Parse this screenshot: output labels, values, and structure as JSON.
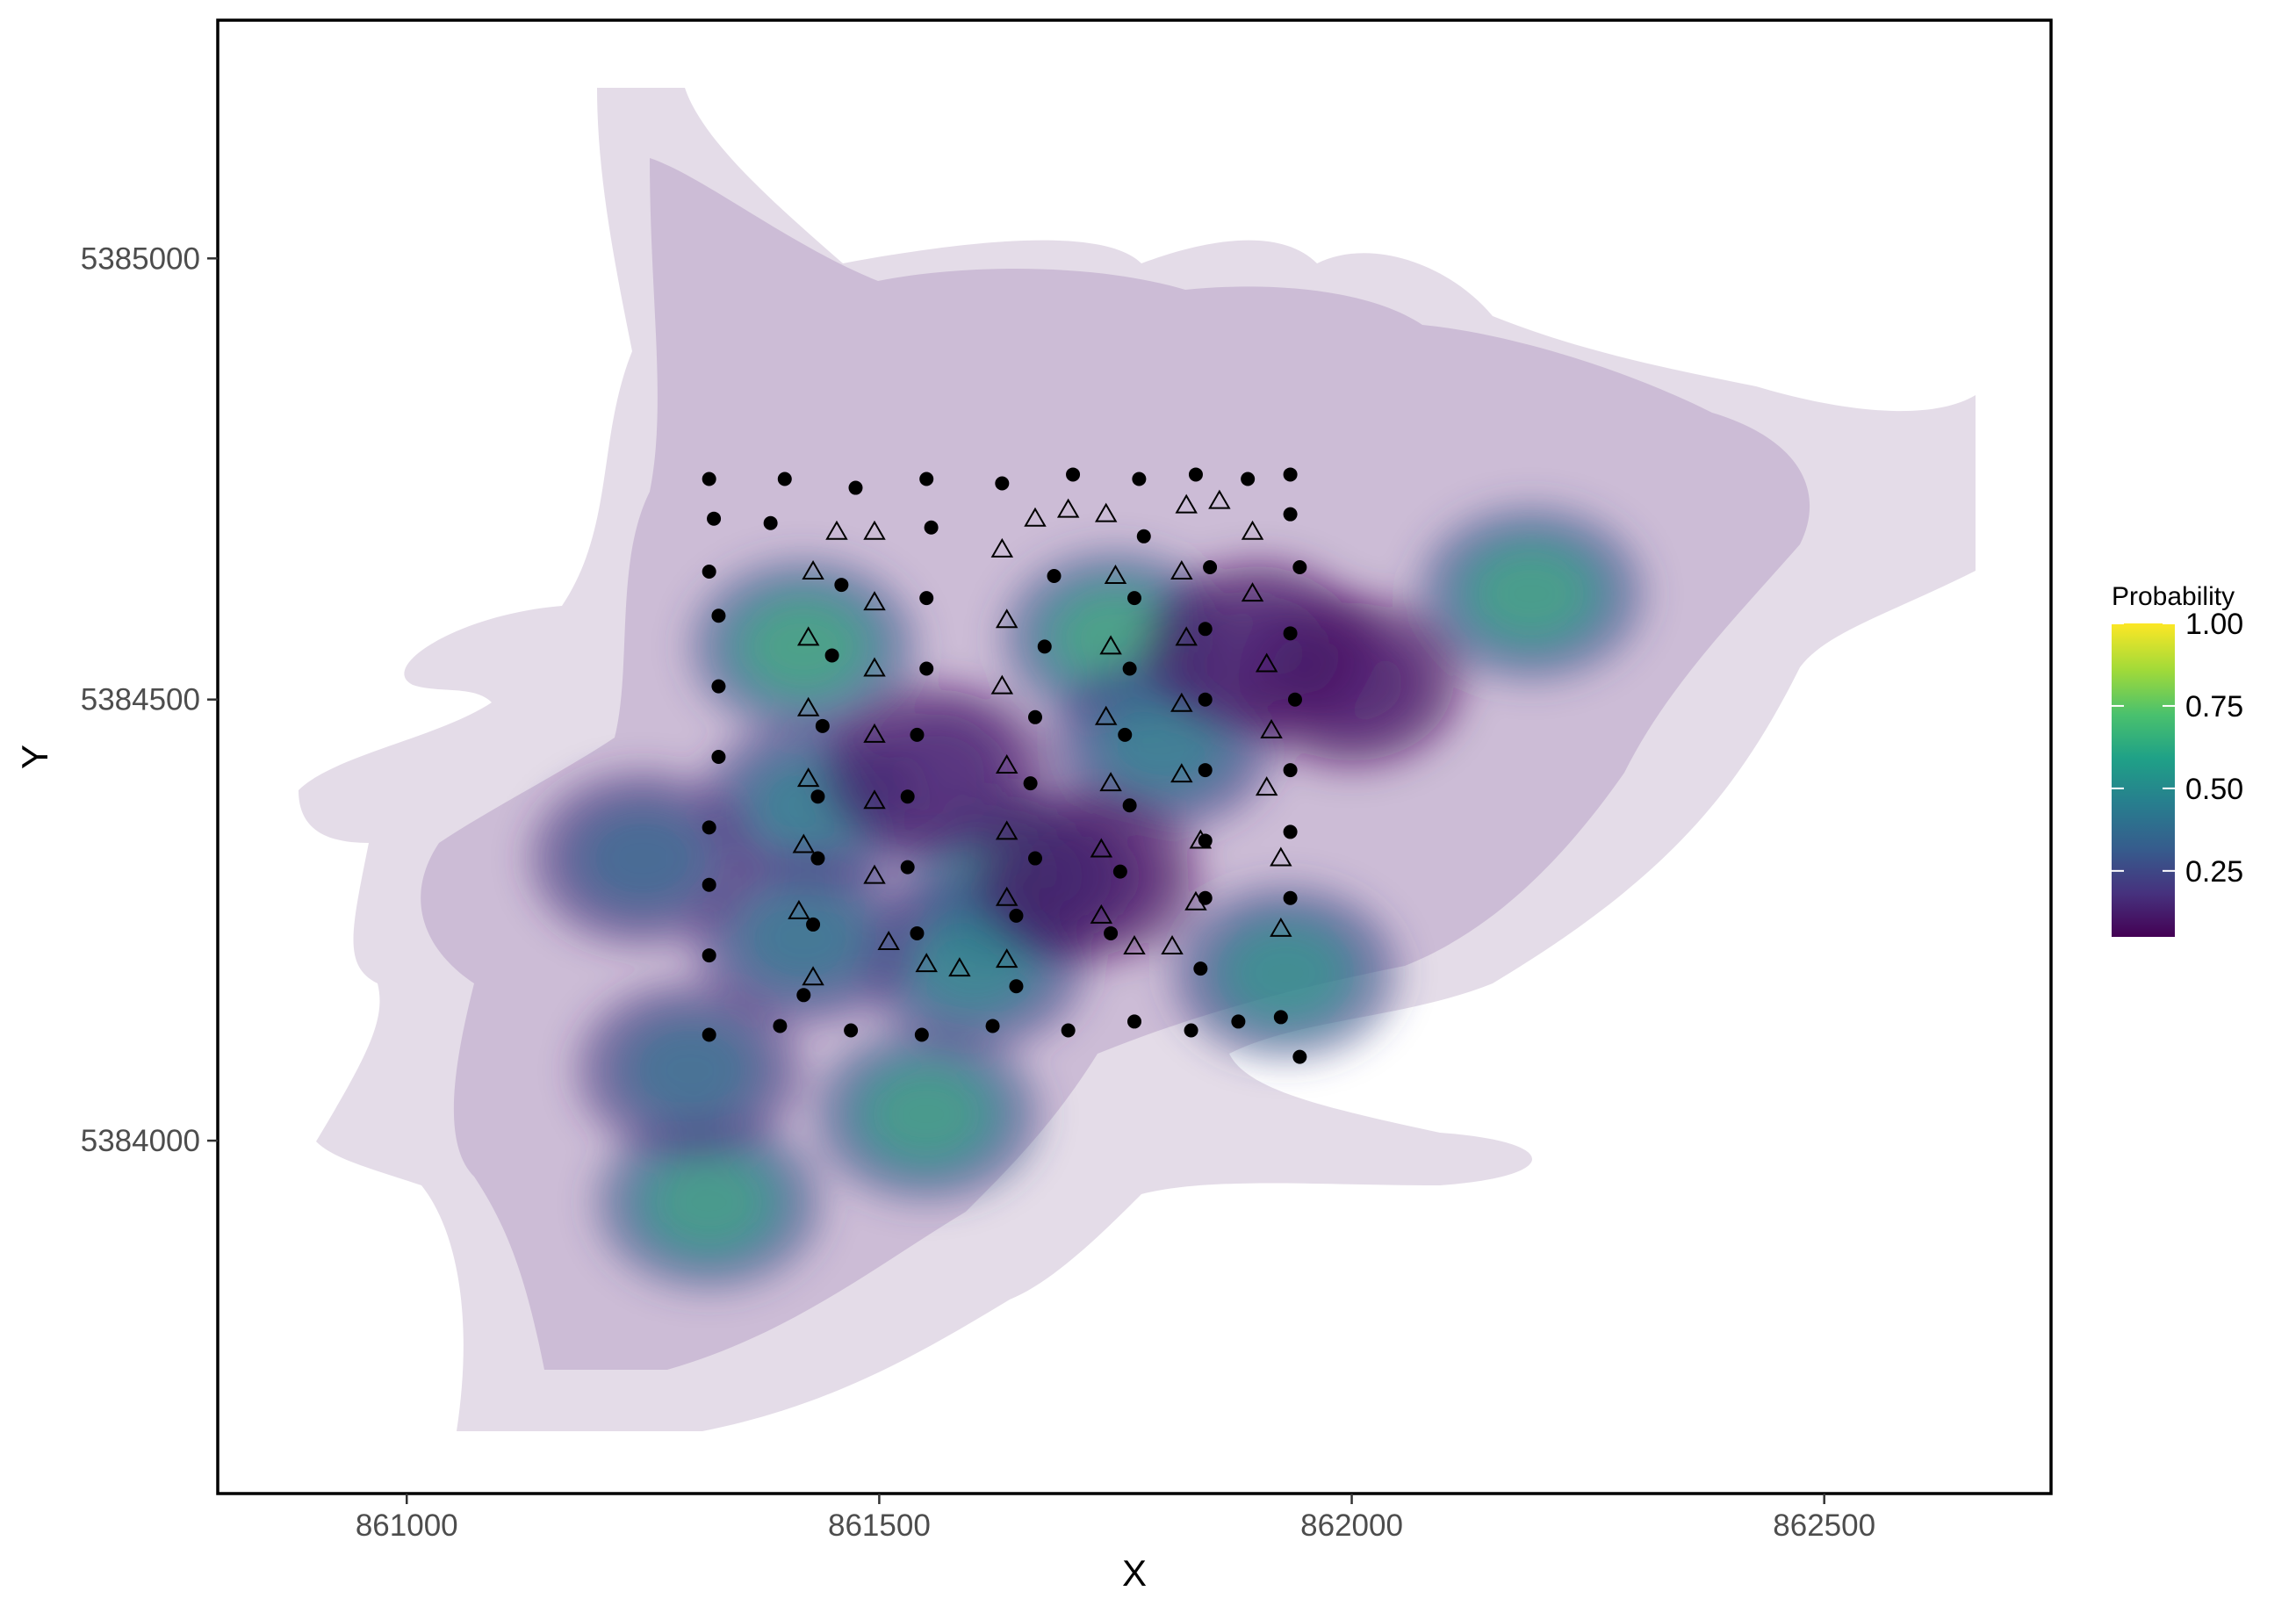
{
  "chart_data": {
    "type": "scatter",
    "subtype": "kernel density contour overlay",
    "xlabel": "X",
    "ylabel": "Y",
    "xlim": [
      860800,
      862740
    ],
    "ylim": [
      5383600,
      5385270
    ],
    "x_ticks": [
      861000,
      861500,
      862000,
      862500
    ],
    "y_ticks": [
      5384000,
      5384500,
      5385000
    ],
    "x_tick_labels": [
      "861000",
      "861500",
      "862000",
      "862500"
    ],
    "y_tick_labels": [
      "5384000",
      "5384500",
      "5385000"
    ],
    "grid": false,
    "legend": {
      "title": "Probability",
      "placement": "right",
      "colorscale": "viridis",
      "range": [
        0.05,
        1.0
      ],
      "ticks": [
        0.25,
        0.5,
        0.75,
        1.0
      ],
      "tick_labels": [
        "0.25",
        "0.50",
        "0.75",
        "1.00"
      ]
    },
    "density_hotspots": [
      {
        "x": 861420,
        "y": 5384560,
        "level": 0.85
      },
      {
        "x": 861750,
        "y": 5384570,
        "level": 0.85
      },
      {
        "x": 862190,
        "y": 5384620,
        "level": 0.82
      },
      {
        "x": 861550,
        "y": 5384030,
        "level": 0.8
      },
      {
        "x": 861320,
        "y": 5383930,
        "level": 0.8
      },
      {
        "x": 861430,
        "y": 5384380,
        "level": 0.6
      },
      {
        "x": 861640,
        "y": 5384300,
        "level": 0.7
      },
      {
        "x": 861600,
        "y": 5384200,
        "level": 0.65
      },
      {
        "x": 861800,
        "y": 5384450,
        "level": 0.6
      },
      {
        "x": 861930,
        "y": 5384190,
        "level": 0.7
      },
      {
        "x": 861420,
        "y": 5384230,
        "level": 0.55
      },
      {
        "x": 861250,
        "y": 5384320,
        "level": 0.45
      },
      {
        "x": 861300,
        "y": 5384080,
        "level": 0.5
      },
      {
        "x": 862000,
        "y": 5384520,
        "level": 0.1
      },
      {
        "x": 861720,
        "y": 5384300,
        "level": 0.1
      },
      {
        "x": 861900,
        "y": 5384560,
        "level": 0.12
      },
      {
        "x": 861560,
        "y": 5384420,
        "level": 0.15
      }
    ],
    "series": [
      {
        "marker": "circle",
        "points": [
          [
            861320,
            5384750
          ],
          [
            861400,
            5384750
          ],
          [
            861475,
            5384740
          ],
          [
            861550,
            5384750
          ],
          [
            861630,
            5384745
          ],
          [
            861705,
            5384755
          ],
          [
            861775,
            5384750
          ],
          [
            861835,
            5384755
          ],
          [
            861890,
            5384750
          ],
          [
            861935,
            5384755
          ],
          [
            861325,
            5384705
          ],
          [
            861385,
            5384700
          ],
          [
            861555,
            5384695
          ],
          [
            861780,
            5384685
          ],
          [
            861935,
            5384710
          ],
          [
            861320,
            5384645
          ],
          [
            861460,
            5384630
          ],
          [
            861685,
            5384640
          ],
          [
            861850,
            5384650
          ],
          [
            861945,
            5384650
          ],
          [
            861330,
            5384595
          ],
          [
            861550,
            5384615
          ],
          [
            861770,
            5384615
          ],
          [
            861935,
            5384575
          ],
          [
            861450,
            5384550
          ],
          [
            861550,
            5384535
          ],
          [
            861675,
            5384560
          ],
          [
            861765,
            5384535
          ],
          [
            861845,
            5384580
          ],
          [
            861330,
            5384515
          ],
          [
            861940,
            5384500
          ],
          [
            861845,
            5384500
          ],
          [
            861440,
            5384470
          ],
          [
            861540,
            5384460
          ],
          [
            861665,
            5384480
          ],
          [
            861760,
            5384460
          ],
          [
            861330,
            5384435
          ],
          [
            861435,
            5384390
          ],
          [
            861530,
            5384390
          ],
          [
            861660,
            5384405
          ],
          [
            861765,
            5384380
          ],
          [
            861845,
            5384420
          ],
          [
            861935,
            5384420
          ],
          [
            861320,
            5384355
          ],
          [
            861935,
            5384350
          ],
          [
            861845,
            5384340
          ],
          [
            861435,
            5384320
          ],
          [
            861530,
            5384310
          ],
          [
            861665,
            5384320
          ],
          [
            861755,
            5384305
          ],
          [
            861320,
            5384290
          ],
          [
            861845,
            5384275
          ],
          [
            861935,
            5384275
          ],
          [
            861430,
            5384245
          ],
          [
            861540,
            5384235
          ],
          [
            861645,
            5384255
          ],
          [
            861745,
            5384235
          ],
          [
            861320,
            5384210
          ],
          [
            861840,
            5384195
          ],
          [
            861420,
            5384165
          ],
          [
            861645,
            5384175
          ],
          [
            861925,
            5384140
          ],
          [
            861320,
            5384120
          ],
          [
            861395,
            5384130
          ],
          [
            861470,
            5384125
          ],
          [
            861545,
            5384120
          ],
          [
            861620,
            5384130
          ],
          [
            861700,
            5384125
          ],
          [
            861770,
            5384135
          ],
          [
            861830,
            5384125
          ],
          [
            861880,
            5384135
          ],
          [
            861945,
            5384095
          ]
        ]
      },
      {
        "marker": "triangle",
        "points": [
          [
            861455,
            5384690
          ],
          [
            861495,
            5384690
          ],
          [
            861665,
            5384705
          ],
          [
            861700,
            5384715
          ],
          [
            861740,
            5384710
          ],
          [
            861825,
            5384720
          ],
          [
            861860,
            5384725
          ],
          [
            861895,
            5384690
          ],
          [
            861430,
            5384645
          ],
          [
            861630,
            5384670
          ],
          [
            861750,
            5384640
          ],
          [
            861820,
            5384645
          ],
          [
            861895,
            5384620
          ],
          [
            861495,
            5384610
          ],
          [
            861635,
            5384590
          ],
          [
            861425,
            5384570
          ],
          [
            861745,
            5384560
          ],
          [
            861825,
            5384570
          ],
          [
            861495,
            5384535
          ],
          [
            861910,
            5384540
          ],
          [
            861630,
            5384515
          ],
          [
            861820,
            5384495
          ],
          [
            861425,
            5384490
          ],
          [
            861740,
            5384480
          ],
          [
            861495,
            5384460
          ],
          [
            861915,
            5384465
          ],
          [
            861635,
            5384425
          ],
          [
            861425,
            5384410
          ],
          [
            861745,
            5384405
          ],
          [
            861820,
            5384415
          ],
          [
            861910,
            5384400
          ],
          [
            861495,
            5384385
          ],
          [
            861635,
            5384350
          ],
          [
            861420,
            5384335
          ],
          [
            861840,
            5384340
          ],
          [
            861735,
            5384330
          ],
          [
            861925,
            5384320
          ],
          [
            861495,
            5384300
          ],
          [
            861635,
            5384275
          ],
          [
            861835,
            5384270
          ],
          [
            861415,
            5384260
          ],
          [
            861735,
            5384255
          ],
          [
            861925,
            5384240
          ],
          [
            861510,
            5384225
          ],
          [
            861770,
            5384220
          ],
          [
            861810,
            5384220
          ],
          [
            861635,
            5384205
          ],
          [
            861550,
            5384200
          ],
          [
            861585,
            5384195
          ],
          [
            861430,
            5384185
          ]
        ]
      }
    ]
  }
}
